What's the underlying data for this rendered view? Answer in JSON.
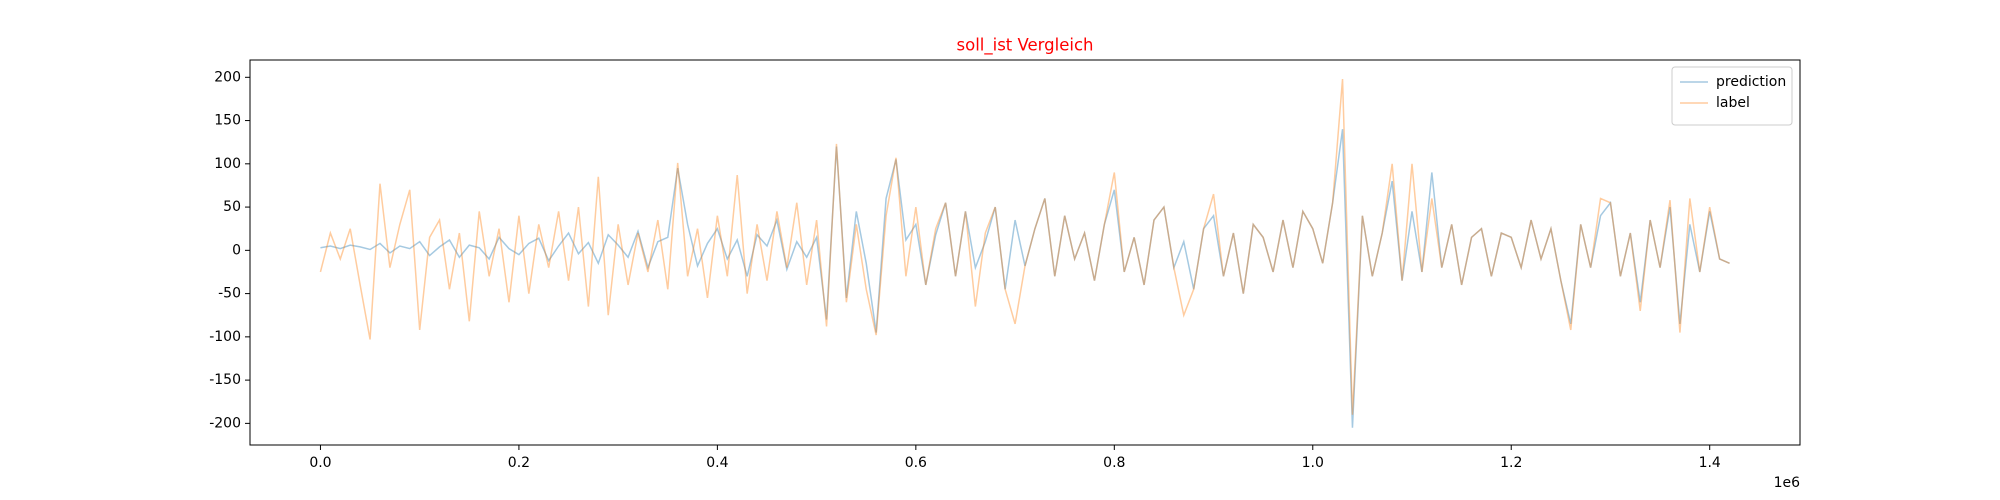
{
  "chart_data": {
    "type": "line",
    "title": "soll_ist Vergleich",
    "title_color": "#ff0000",
    "x": [
      0,
      10000,
      20000,
      30000,
      40000,
      50000,
      60000,
      70000,
      80000,
      90000,
      100000,
      110000,
      120000,
      130000,
      140000,
      150000,
      160000,
      170000,
      180000,
      190000,
      200000,
      210000,
      220000,
      230000,
      240000,
      250000,
      260000,
      270000,
      280000,
      290000,
      300000,
      310000,
      320000,
      330000,
      340000,
      350000,
      360000,
      370000,
      380000,
      390000,
      400000,
      410000,
      420000,
      430000,
      440000,
      450000,
      460000,
      470000,
      480000,
      490000,
      500000,
      510000,
      520000,
      530000,
      540000,
      550000,
      560000,
      570000,
      580000,
      590000,
      600000,
      610000,
      620000,
      630000,
      640000,
      650000,
      660000,
      670000,
      680000,
      690000,
      700000,
      710000,
      720000,
      730000,
      740000,
      750000,
      760000,
      770000,
      780000,
      790000,
      800000,
      810000,
      820000,
      830000,
      840000,
      850000,
      860000,
      870000,
      880000,
      890000,
      900000,
      910000,
      920000,
      930000,
      940000,
      950000,
      960000,
      970000,
      980000,
      990000,
      1000000,
      1010000,
      1020000,
      1030000,
      1040000,
      1050000,
      1060000,
      1070000,
      1080000,
      1090000,
      1100000,
      1110000,
      1120000,
      1130000,
      1140000,
      1150000,
      1160000,
      1170000,
      1180000,
      1190000,
      1200000,
      1210000,
      1220000,
      1230000,
      1240000,
      1250000,
      1260000,
      1270000,
      1280000,
      1290000,
      1300000,
      1310000,
      1320000,
      1330000,
      1340000,
      1350000,
      1360000,
      1370000,
      1380000,
      1390000,
      1400000,
      1410000,
      1420000
    ],
    "series": [
      {
        "name": "prediction",
        "color": "#1f77b4",
        "values": [
          3,
          5,
          2,
          6,
          4,
          1,
          8,
          -3,
          5,
          2,
          10,
          -6,
          4,
          12,
          -8,
          6,
          3,
          -10,
          15,
          2,
          -5,
          8,
          14,
          -12,
          5,
          20,
          -4,
          9,
          -15,
          18,
          6,
          -8,
          22,
          -20,
          10,
          15,
          95,
          30,
          -18,
          8,
          25,
          -10,
          12,
          -30,
          18,
          5,
          35,
          -22,
          10,
          -8,
          15,
          -80,
          120,
          -55,
          45,
          -15,
          -95,
          60,
          105,
          12,
          30,
          -40,
          18,
          55,
          -30,
          45,
          -20,
          10,
          50,
          -45,
          35,
          -18,
          25,
          60,
          -30,
          40,
          -10,
          20,
          -35,
          30,
          70,
          -25,
          15,
          -40,
          35,
          50,
          -20,
          10,
          -45,
          25,
          40,
          -30,
          20,
          -50,
          30,
          15,
          -25,
          35,
          -20,
          45,
          25,
          -15,
          55,
          140,
          -205,
          40,
          -30,
          20,
          80,
          -35,
          45,
          -25,
          90,
          -20,
          30,
          -40,
          15,
          25,
          -30,
          20,
          15,
          -20,
          35,
          -10,
          25,
          -35,
          -85,
          30,
          -20,
          40,
          55,
          -30,
          20,
          -60,
          35,
          -20,
          50,
          -85,
          30,
          -25,
          45,
          -10,
          -15
        ]
      },
      {
        "name": "label",
        "color": "#ff7f0e",
        "values": [
          -25,
          20,
          -10,
          25,
          -40,
          -103,
          77,
          -20,
          30,
          70,
          -92,
          15,
          35,
          -45,
          20,
          -82,
          45,
          -30,
          25,
          -60,
          40,
          -50,
          30,
          -20,
          45,
          -35,
          50,
          -65,
          85,
          -75,
          30,
          -40,
          20,
          -25,
          35,
          -45,
          101,
          -30,
          25,
          -55,
          40,
          -30,
          87,
          -50,
          30,
          -35,
          45,
          -20,
          55,
          -40,
          35,
          -88,
          123,
          -60,
          30,
          -45,
          -98,
          40,
          107,
          -30,
          50,
          -40,
          25,
          55,
          -30,
          45,
          -65,
          20,
          50,
          -45,
          -85,
          -18,
          25,
          60,
          -30,
          40,
          -10,
          20,
          -35,
          30,
          90,
          -25,
          15,
          -40,
          35,
          50,
          -20,
          -75,
          -45,
          25,
          65,
          -30,
          20,
          -50,
          30,
          15,
          -25,
          35,
          -20,
          45,
          25,
          -15,
          55,
          198,
          -190,
          40,
          -30,
          20,
          100,
          -35,
          100,
          -25,
          60,
          -20,
          30,
          -40,
          15,
          25,
          -30,
          20,
          15,
          -20,
          35,
          -10,
          25,
          -35,
          -92,
          30,
          -20,
          60,
          55,
          -30,
          20,
          -70,
          35,
          -20,
          58,
          -95,
          60,
          -25,
          50,
          -10,
          -15
        ]
      }
    ],
    "line_alpha": 0.4,
    "xlim": [
      -71000,
      1491000
    ],
    "xticks": [
      {
        "value": 0,
        "label": "0.0"
      },
      {
        "value": 200000,
        "label": "0.2"
      },
      {
        "value": 400000,
        "label": "0.4"
      },
      {
        "value": 600000,
        "label": "0.6"
      },
      {
        "value": 800000,
        "label": "0.8"
      },
      {
        "value": 1000000,
        "label": "1.0"
      },
      {
        "value": 1200000,
        "label": "1.2"
      },
      {
        "value": 1400000,
        "label": "1.4"
      }
    ],
    "x_offset_label": "1e6",
    "ylim": [
      -225,
      220
    ],
    "yticks": [
      -200,
      -150,
      -100,
      -50,
      0,
      50,
      100,
      150,
      200
    ],
    "legend": "upper right"
  }
}
